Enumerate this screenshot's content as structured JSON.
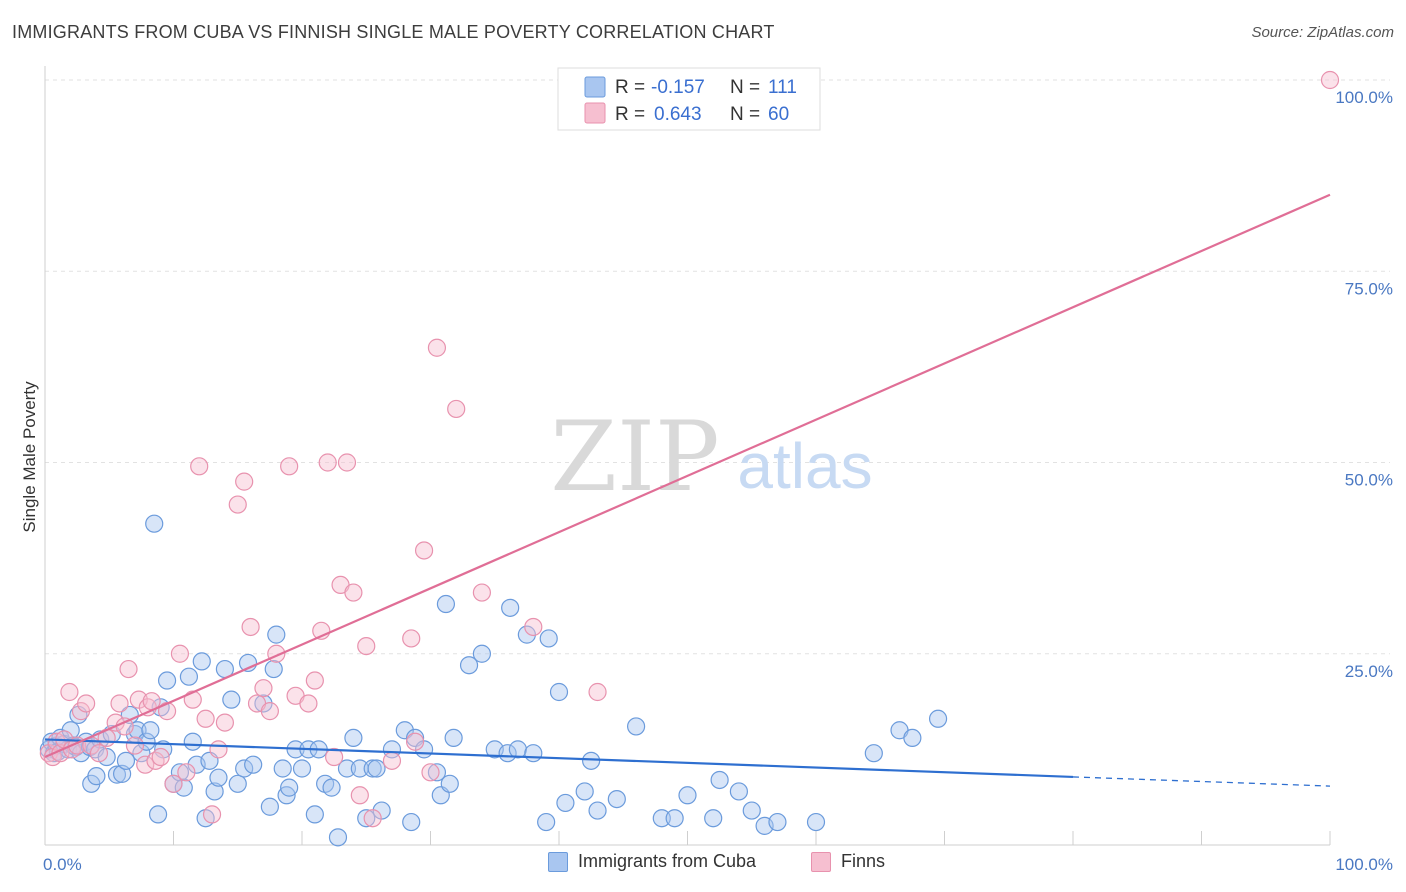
{
  "title": "IMMIGRANTS FROM CUBA VS FINNISH SINGLE MALE POVERTY CORRELATION CHART",
  "source": "Source: ZipAtlas.com",
  "watermark": {
    "zip": "ZIP",
    "atlas": "atlas"
  },
  "chart_data": {
    "type": "scatter",
    "title": "IMMIGRANTS FROM CUBA VS FINNISH SINGLE MALE POVERTY CORRELATION CHART",
    "xlabel": "",
    "ylabel": "Single Male Poverty",
    "xlim": [
      0,
      100
    ],
    "ylim": [
      0,
      100
    ],
    "x_tick_labels": [
      "0.0%",
      "100.0%"
    ],
    "y_tick_labels": [
      "25.0%",
      "50.0%",
      "75.0%",
      "100.0%"
    ],
    "y_ticks": [
      25,
      50,
      75,
      100
    ],
    "grid": true,
    "legend_placement": "top-center",
    "colors": {
      "cuba_fill": "#a9c6f0",
      "cuba_stroke": "#6b9bdc",
      "cuba_line": "#2e6fd0",
      "finns_fill": "#f6bfd0",
      "finns_stroke": "#e892ae",
      "finns_line": "#e06e96",
      "tick_text": "#4a78c2"
    },
    "stats": [
      {
        "r_label": "R =",
        "r": "-0.157",
        "n_label": "N =",
        "n": "111"
      },
      {
        "r_label": "R =",
        "r": "0.643",
        "n_label": "N =",
        "n": "60"
      }
    ],
    "series": [
      {
        "name": "Immigrants from Cuba",
        "trend": {
          "x": [
            0,
            80,
            100
          ],
          "y": [
            13.8,
            8.9,
            7.7
          ],
          "solid_until": 80
        },
        "points": [
          [
            0.3,
            12.5
          ],
          [
            0.5,
            13.5
          ],
          [
            0.7,
            12.0
          ],
          [
            0.9,
            13.0
          ],
          [
            1.0,
            12.2
          ],
          [
            1.2,
            14.0
          ],
          [
            1.5,
            13.2
          ],
          [
            1.8,
            12.5
          ],
          [
            2.0,
            15.0
          ],
          [
            2.2,
            13.0
          ],
          [
            2.4,
            12.8
          ],
          [
            2.6,
            17.0
          ],
          [
            2.8,
            12.0
          ],
          [
            3.2,
            13.5
          ],
          [
            3.5,
            12.8
          ],
          [
            3.6,
            8.0
          ],
          [
            3.9,
            12.5
          ],
          [
            4.0,
            9.0
          ],
          [
            4.3,
            13.8
          ],
          [
            4.8,
            11.5
          ],
          [
            5.2,
            14.5
          ],
          [
            5.6,
            9.2
          ],
          [
            6.0,
            9.3
          ],
          [
            6.3,
            11.0
          ],
          [
            6.6,
            17.0
          ],
          [
            7.0,
            14.5
          ],
          [
            7.2,
            15.0
          ],
          [
            7.5,
            12.0
          ],
          [
            7.9,
            13.5
          ],
          [
            8.2,
            15.0
          ],
          [
            8.5,
            42.0
          ],
          [
            8.8,
            4.0
          ],
          [
            9.0,
            18.0
          ],
          [
            9.2,
            12.5
          ],
          [
            9.5,
            21.5
          ],
          [
            10.0,
            8.0
          ],
          [
            10.5,
            9.5
          ],
          [
            10.8,
            7.5
          ],
          [
            11.2,
            22.0
          ],
          [
            11.5,
            13.5
          ],
          [
            11.8,
            10.5
          ],
          [
            12.2,
            24.0
          ],
          [
            12.5,
            3.5
          ],
          [
            12.8,
            11.0
          ],
          [
            13.2,
            7.0
          ],
          [
            13.5,
            8.8
          ],
          [
            14.0,
            23.0
          ],
          [
            14.5,
            19.0
          ],
          [
            15.0,
            8.0
          ],
          [
            15.5,
            10.0
          ],
          [
            15.8,
            23.8
          ],
          [
            16.2,
            10.5
          ],
          [
            17.0,
            18.5
          ],
          [
            17.5,
            5.0
          ],
          [
            17.8,
            23.0
          ],
          [
            18.0,
            27.5
          ],
          [
            18.5,
            10.0
          ],
          [
            18.8,
            6.5
          ],
          [
            19.0,
            7.5
          ],
          [
            19.5,
            12.5
          ],
          [
            20.0,
            10.0
          ],
          [
            20.5,
            12.5
          ],
          [
            21.0,
            4.0
          ],
          [
            21.3,
            12.5
          ],
          [
            21.8,
            8.0
          ],
          [
            22.3,
            7.5
          ],
          [
            22.8,
            1.0
          ],
          [
            23.5,
            10.0
          ],
          [
            24.0,
            14.0
          ],
          [
            24.5,
            10.0
          ],
          [
            25.0,
            3.5
          ],
          [
            25.5,
            10.0
          ],
          [
            25.8,
            10.0
          ],
          [
            26.2,
            4.5
          ],
          [
            27.0,
            12.5
          ],
          [
            28.0,
            15.0
          ],
          [
            28.5,
            3.0
          ],
          [
            28.8,
            14.0
          ],
          [
            29.5,
            12.5
          ],
          [
            30.5,
            9.5
          ],
          [
            30.8,
            6.5
          ],
          [
            31.2,
            31.5
          ],
          [
            31.5,
            8.0
          ],
          [
            31.8,
            14.0
          ],
          [
            33.0,
            23.5
          ],
          [
            34.0,
            25.0
          ],
          [
            35.0,
            12.5
          ],
          [
            36.0,
            12.0
          ],
          [
            36.2,
            31.0
          ],
          [
            36.8,
            12.5
          ],
          [
            37.5,
            27.5
          ],
          [
            38.0,
            12.0
          ],
          [
            39.0,
            3.0
          ],
          [
            39.2,
            27.0
          ],
          [
            40.0,
            20.0
          ],
          [
            40.5,
            5.5
          ],
          [
            42.0,
            7.0
          ],
          [
            42.5,
            11.0
          ],
          [
            43.0,
            4.5
          ],
          [
            44.5,
            6.0
          ],
          [
            46.0,
            15.5
          ],
          [
            48.0,
            3.5
          ],
          [
            49.0,
            3.5
          ],
          [
            50.0,
            6.5
          ],
          [
            52.0,
            3.5
          ],
          [
            52.5,
            8.5
          ],
          [
            54.0,
            7.0
          ],
          [
            55.0,
            4.5
          ],
          [
            56.0,
            2.5
          ],
          [
            57.0,
            3.0
          ],
          [
            60.0,
            3.0
          ],
          [
            64.5,
            12.0
          ],
          [
            66.5,
            15.0
          ],
          [
            67.5,
            14.0
          ],
          [
            69.5,
            16.5
          ]
        ]
      },
      {
        "name": "Finns",
        "trend": {
          "x": [
            0,
            100
          ],
          "y": [
            11.5,
            85.0
          ]
        },
        "points": [
          [
            0.3,
            12.0
          ],
          [
            0.6,
            11.5
          ],
          [
            0.9,
            13.5
          ],
          [
            1.2,
            12.0
          ],
          [
            1.5,
            13.8
          ],
          [
            1.9,
            20.0
          ],
          [
            2.1,
            12.5
          ],
          [
            2.5,
            13.0
          ],
          [
            2.8,
            17.5
          ],
          [
            3.2,
            18.5
          ],
          [
            3.6,
            13.0
          ],
          [
            4.2,
            12.0
          ],
          [
            4.8,
            14.0
          ],
          [
            5.5,
            16.0
          ],
          [
            5.8,
            18.5
          ],
          [
            6.2,
            15.5
          ],
          [
            6.5,
            23.0
          ],
          [
            7.0,
            13.0
          ],
          [
            7.3,
            19.0
          ],
          [
            7.8,
            10.5
          ],
          [
            8.0,
            18.0
          ],
          [
            8.3,
            18.8
          ],
          [
            8.6,
            11.0
          ],
          [
            9.0,
            11.5
          ],
          [
            9.5,
            17.5
          ],
          [
            10.0,
            8.0
          ],
          [
            10.5,
            25.0
          ],
          [
            11.0,
            9.5
          ],
          [
            11.5,
            19.0
          ],
          [
            12.0,
            49.5
          ],
          [
            12.5,
            16.5
          ],
          [
            13.0,
            4.0
          ],
          [
            13.5,
            12.5
          ],
          [
            14.0,
            16.0
          ],
          [
            15.0,
            44.5
          ],
          [
            15.5,
            47.5
          ],
          [
            16.0,
            28.5
          ],
          [
            16.5,
            18.5
          ],
          [
            17.0,
            20.5
          ],
          [
            17.5,
            17.5
          ],
          [
            18.0,
            25.0
          ],
          [
            19.0,
            49.5
          ],
          [
            19.5,
            19.5
          ],
          [
            20.5,
            18.5
          ],
          [
            21.0,
            21.5
          ],
          [
            21.5,
            28.0
          ],
          [
            22.0,
            50.0
          ],
          [
            22.5,
            11.5
          ],
          [
            23.0,
            34.0
          ],
          [
            23.5,
            50.0
          ],
          [
            24.0,
            33.0
          ],
          [
            24.5,
            6.5
          ],
          [
            25.0,
            26.0
          ],
          [
            25.5,
            3.5
          ],
          [
            27.0,
            11.0
          ],
          [
            28.5,
            27.0
          ],
          [
            28.8,
            13.5
          ],
          [
            29.5,
            38.5
          ],
          [
            30.0,
            9.5
          ],
          [
            30.5,
            65.0
          ],
          [
            32.0,
            57.0
          ],
          [
            34.0,
            33.0
          ],
          [
            38.0,
            28.5
          ],
          [
            43.0,
            20.0
          ],
          [
            100.0,
            100.0
          ]
        ]
      }
    ],
    "legend_labels": [
      "Immigrants from Cuba",
      "Finns"
    ]
  }
}
